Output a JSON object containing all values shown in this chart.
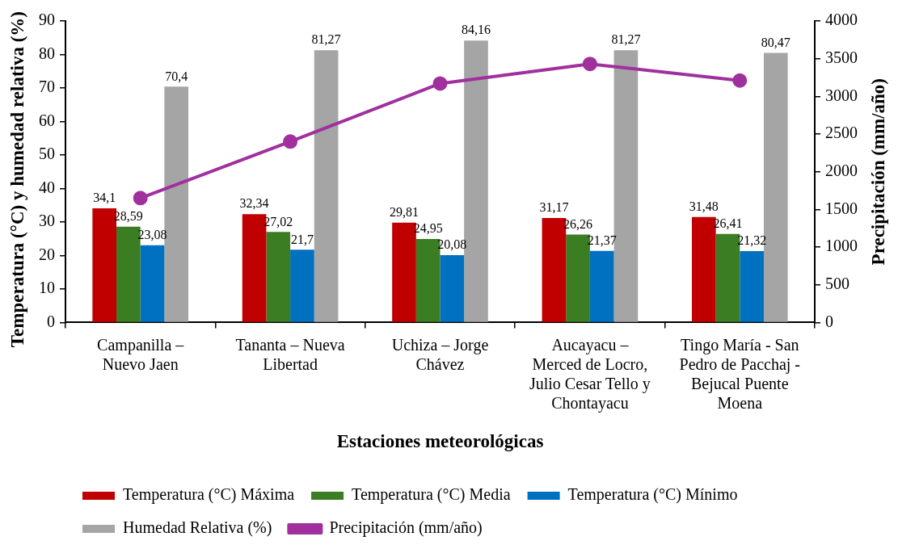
{
  "chart_data": {
    "type": "bar",
    "xlabel": "Estaciones meteorológicas",
    "ylabel": "Temperatura (°C) y humedad relativa (%)",
    "y2label": "Precipitación (mm/año)",
    "categories": [
      "Campanilla – Nuevo Jaen",
      "Tananta – Nueva Libertad",
      "Uchiza – Jorge Chávez",
      "Aucayacu – Merced de Locro, Julio Cesar Tello y Chontayacu",
      "Tingo María - San Pedro de Pacchaj - Bejucal Puente Moena"
    ],
    "series": [
      {
        "name": "Temperatura (°C) Máxima",
        "color": "#c00000",
        "values": [
          34.1,
          32.34,
          29.81,
          31.17,
          31.48
        ],
        "value_labels": [
          "34,1",
          "32,34",
          "29,81",
          "31,17",
          "31,48"
        ]
      },
      {
        "name": "Temperatura (°C) Media",
        "color": "#3a7d22",
        "values": [
          28.59,
          27.02,
          24.95,
          26.26,
          26.41
        ],
        "value_labels": [
          "28,59",
          "27,02",
          "24,95",
          "26,26",
          "26,41"
        ]
      },
      {
        "name": "Temperatura (°C) Mínimo",
        "color": "#0070c0",
        "values": [
          23.08,
          21.7,
          20.08,
          21.37,
          21.32
        ],
        "value_labels": [
          "23,08",
          "21,7",
          "20,08",
          "21,37",
          "21,32"
        ]
      },
      {
        "name": "Humedad Relativa (%)",
        "color": "#a5a5a5",
        "values": [
          70.4,
          81.27,
          84.16,
          81.27,
          80.47
        ],
        "value_labels": [
          "70,4",
          "81,27",
          "84,16",
          "81,27",
          "80,47"
        ]
      },
      {
        "name": "Precipitación (mm/año)",
        "type": "line",
        "axis": "y2",
        "color": "#a0309e",
        "marker": "circle",
        "values": [
          1650,
          2400,
          3170,
          3430,
          3210
        ]
      }
    ],
    "ylim": [
      0,
      90
    ],
    "yticks": [
      0,
      10,
      20,
      30,
      40,
      50,
      60,
      70,
      80,
      90
    ],
    "y2lim": [
      0,
      4000
    ],
    "y2ticks": [
      0,
      500,
      1000,
      1500,
      2000,
      2500,
      3000,
      3500,
      4000
    ],
    "legend": "bottom"
  }
}
